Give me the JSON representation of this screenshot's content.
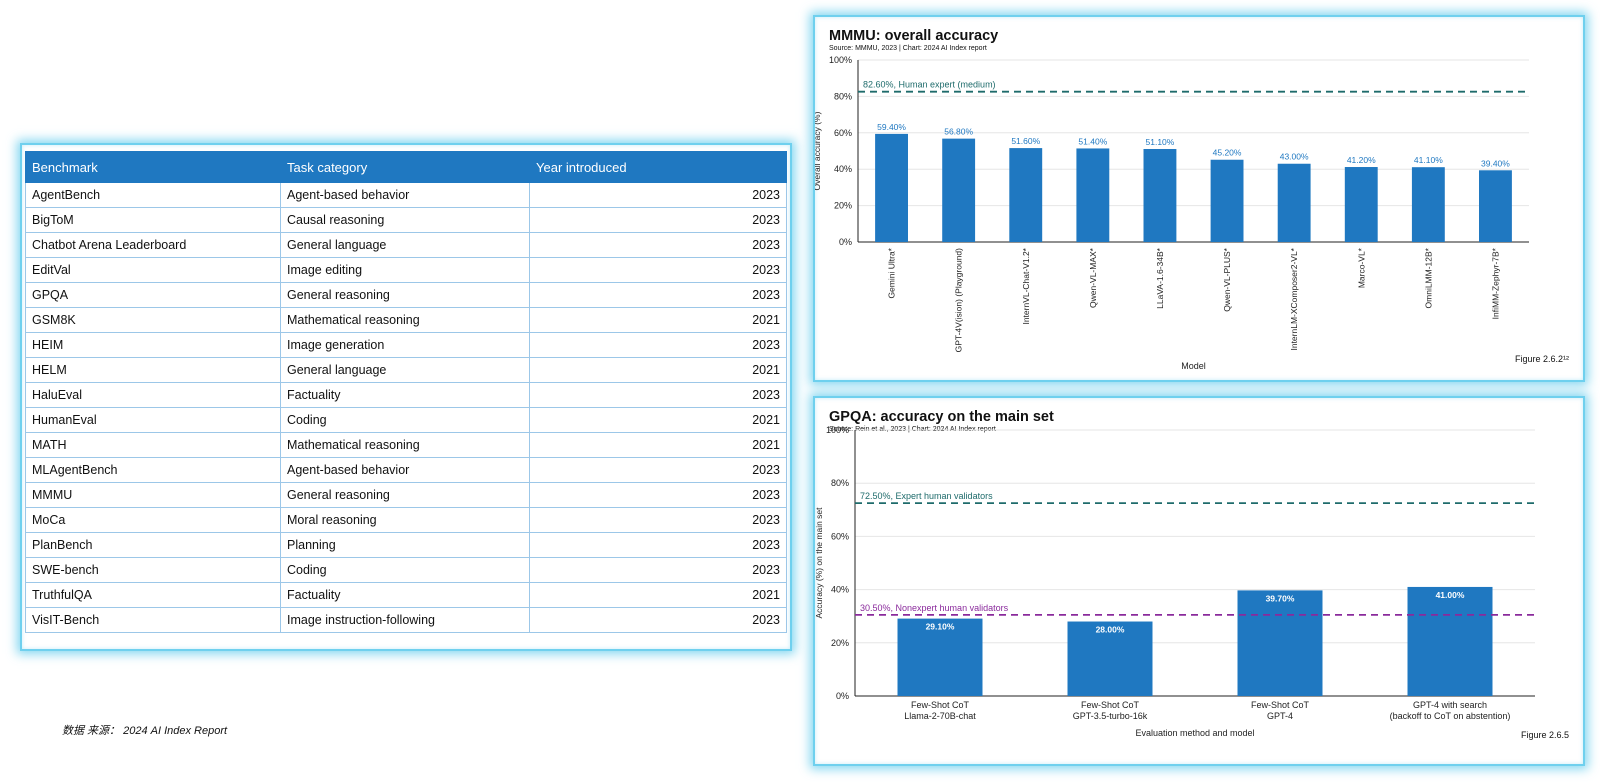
{
  "table": {
    "headers": [
      "Benchmark",
      "Task category",
      "Year introduced"
    ],
    "rows": [
      {
        "benchmark": "AgentBench",
        "category": "Agent-based behavior",
        "year": "2023"
      },
      {
        "benchmark": "BigToM",
        "category": "Causal reasoning",
        "year": "2023"
      },
      {
        "benchmark": "Chatbot Arena Leaderboard",
        "category": "General language",
        "year": "2023"
      },
      {
        "benchmark": "EditVal",
        "category": "Image editing",
        "year": "2023"
      },
      {
        "benchmark": "GPQA",
        "category": "General reasoning",
        "year": "2023"
      },
      {
        "benchmark": "GSM8K",
        "category": "Mathematical reasoning",
        "year": "2021"
      },
      {
        "benchmark": "HEIM",
        "category": "Image generation",
        "year": "2023"
      },
      {
        "benchmark": "HELM",
        "category": "General language",
        "year": "2021"
      },
      {
        "benchmark": "HaluEval",
        "category": "Factuality",
        "year": "2023"
      },
      {
        "benchmark": "HumanEval",
        "category": "Coding",
        "year": "2021"
      },
      {
        "benchmark": "MATH",
        "category": "Mathematical reasoning",
        "year": "2021"
      },
      {
        "benchmark": "MLAgentBench",
        "category": "Agent-based behavior",
        "year": "2023"
      },
      {
        "benchmark": "MMMU",
        "category": "General reasoning",
        "year": "2023"
      },
      {
        "benchmark": "MoCa",
        "category": "Moral reasoning",
        "year": "2023"
      },
      {
        "benchmark": "PlanBench",
        "category": "Planning",
        "year": "2023"
      },
      {
        "benchmark": "SWE-bench",
        "category": "Coding",
        "year": "2023"
      },
      {
        "benchmark": "TruthfulQA",
        "category": "Factuality",
        "year": "2021"
      },
      {
        "benchmark": "VisIT-Bench",
        "category": "Image instruction-following",
        "year": "2023"
      }
    ]
  },
  "footer_note": "数据 来源： 2024 AI Index Report",
  "chart_data": [
    {
      "type": "bar",
      "title": "MMMU: overall accuracy",
      "source": "Source: MMMU, 2023 | Chart: 2024 AI Index report",
      "categories": [
        "Gemini Ultra*",
        "GPT-4V(ision) (Playground)",
        "InternVL-Chat-V1.2*",
        "Qwen-VL-MAX*",
        "LLaVA-1.6-34B*",
        "Qwen-VL-PLUS*",
        "InternLM-XComposer2-VL*",
        "Marco-VL*",
        "OmniLMM-12B*",
        "InfiMM-Zephyr-7B*"
      ],
      "values": [
        59.4,
        56.8,
        51.6,
        51.4,
        51.1,
        45.2,
        43.0,
        41.2,
        41.1,
        39.4
      ],
      "value_labels": [
        "59.40%",
        "56.80%",
        "51.60%",
        "51.40%",
        "51.10%",
        "45.20%",
        "43.00%",
        "41.20%",
        "41.10%",
        "39.40%"
      ],
      "xlabel": "Model",
      "ylabel": "Overall accuracy (%)",
      "ylim": [
        0,
        100
      ],
      "yticks": [
        0,
        20,
        40,
        60,
        80,
        100
      ],
      "ytick_labels": [
        "0%",
        "20%",
        "40%",
        "60%",
        "80%",
        "100%"
      ],
      "reference_lines": [
        {
          "value": 82.6,
          "label": "82.60%, Human expert (medium)",
          "color": "#1e6b6b"
        }
      ],
      "figure_label": "Figure 2.6.2¹²",
      "bar_color": "#1f78c1"
    },
    {
      "type": "bar",
      "title": "GPQA: accuracy on the main set",
      "source": "Source: Rein et al., 2023 | Chart: 2024 AI Index report",
      "categories": [
        [
          "Few-Shot CoT",
          "Llama-2-70B-chat"
        ],
        [
          "Few-Shot CoT",
          "GPT-3.5-turbo-16k"
        ],
        [
          "Few-Shot CoT",
          "GPT-4"
        ],
        [
          "GPT-4 with search",
          "(backoff to CoT on abstention)"
        ]
      ],
      "values": [
        29.1,
        28.0,
        39.7,
        41.0
      ],
      "value_labels": [
        "29.10%",
        "28.00%",
        "39.70%",
        "41.00%"
      ],
      "xlabel": "Evaluation method and model",
      "ylabel": "Accuracy (%) on the main set",
      "ylim": [
        0,
        100
      ],
      "yticks": [
        0,
        20,
        40,
        60,
        80,
        100
      ],
      "ytick_labels": [
        "0%",
        "20%",
        "40%",
        "60%",
        "80%",
        "100%"
      ],
      "reference_lines": [
        {
          "value": 72.5,
          "label": "72.50%, Expert human validators",
          "color": "#1e6b6b"
        },
        {
          "value": 30.5,
          "label": "30.50%, Nonexpert human validators",
          "color": "#8a2a9c"
        }
      ],
      "figure_label": "Figure 2.6.5",
      "bar_color": "#1f78c1"
    }
  ]
}
